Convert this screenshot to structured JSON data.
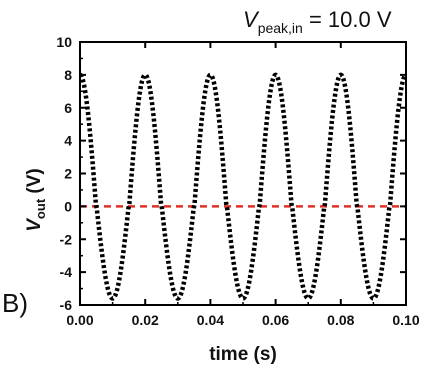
{
  "chart_data": {
    "type": "line",
    "title": {
      "symbol": "V",
      "subscript": "peak,in",
      "rest": " = 10.0 V"
    },
    "panel_label": "B)",
    "xlabel": "time (s)",
    "ylabel": {
      "symbol": "V",
      "subscript": "out",
      "rest": " (V)"
    },
    "xlim": [
      0.0,
      0.1
    ],
    "ylim": [
      -6,
      10
    ],
    "xticks": [
      "0.00",
      "0.02",
      "0.04",
      "0.06",
      "0.08",
      "0.10"
    ],
    "yticks": [
      "10",
      "8",
      "6",
      "4",
      "2",
      "0",
      "-2",
      "-4",
      "-6"
    ],
    "grid": false,
    "series": [
      {
        "style": "dotted",
        "color": "#000000",
        "period_s": 0.02,
        "peak_v": 8.0,
        "trough_v": -5.6,
        "dead_zone_v": 0.2,
        "x_range": [
          0.0,
          0.1
        ]
      },
      {
        "style": "dashed",
        "color": "#e0302a",
        "x": [
          0.0,
          0.1
        ],
        "y": [
          0.0,
          0.0
        ]
      }
    ]
  }
}
